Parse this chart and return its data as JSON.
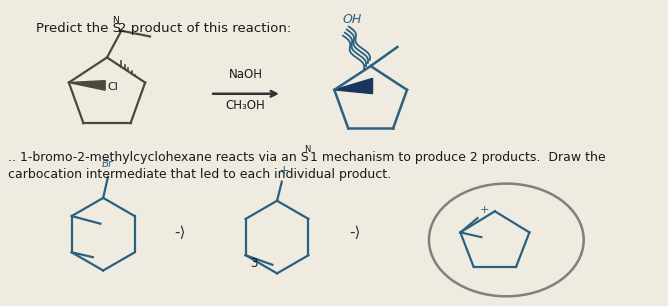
{
  "background_color": "#f0ebe0",
  "structure_color_dark": "#4a4a3a",
  "structure_color_blue": "#2a6080",
  "dark_blue_fill": "#1a3560",
  "oval_color": "#808080",
  "figsize": [
    6.68,
    3.06
  ],
  "dpi": 100,
  "title_text_pre": "Predict the S",
  "title_sub": "N",
  "title_text_post": "2 product of this reaction:",
  "reagent1": "NaOH",
  "reagent2": "CH₃OH",
  "body1_pre": ".. 1-bromo-2-methylcyclohexane reacts via an S",
  "body1_sub": "N",
  "body1_post": "1 mechanism to produce 2 products.  Draw the",
  "body2": "carbocation intermediate that led to each individual product.",
  "arrow_small": "-⟩"
}
